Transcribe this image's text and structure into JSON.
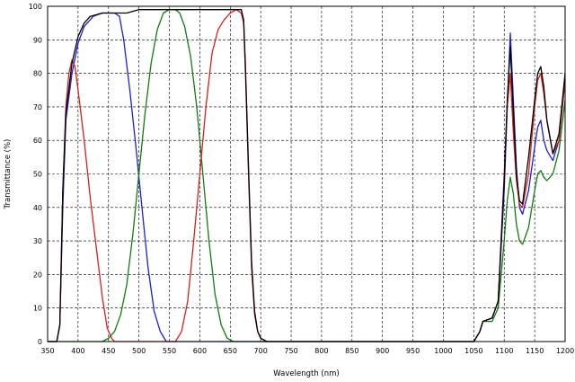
{
  "chart_data": {
    "type": "line",
    "title": "",
    "xlabel": "Wavelength (nm)",
    "ylabel": "Transmittance (%)",
    "xlim": [
      350,
      1200
    ],
    "ylim": [
      0,
      100
    ],
    "grid": true,
    "legend": "none",
    "x_ticks": [
      350,
      400,
      450,
      500,
      550,
      600,
      650,
      700,
      750,
      800,
      850,
      900,
      950,
      1000,
      1050,
      1100,
      1150,
      1200
    ],
    "y_ticks": [
      0,
      10,
      20,
      30,
      40,
      50,
      60,
      70,
      80,
      90,
      100
    ],
    "series": [
      {
        "color": "#1f1fd0",
        "points": [
          [
            350,
            0
          ],
          [
            365,
            0
          ],
          [
            370,
            5
          ],
          [
            375,
            40
          ],
          [
            380,
            66
          ],
          [
            390,
            80
          ],
          [
            400,
            89
          ],
          [
            410,
            94
          ],
          [
            425,
            97
          ],
          [
            440,
            98
          ],
          [
            460,
            98
          ],
          [
            468,
            97
          ],
          [
            475,
            90
          ],
          [
            485,
            75
          ],
          [
            495,
            58
          ],
          [
            505,
            40
          ],
          [
            515,
            22
          ],
          [
            525,
            9
          ],
          [
            535,
            3
          ],
          [
            545,
            0
          ],
          [
            560,
            0
          ],
          [
            1050,
            0
          ],
          [
            1060,
            3
          ],
          [
            1065,
            6
          ],
          [
            1080,
            7
          ],
          [
            1090,
            12
          ],
          [
            1100,
            45
          ],
          [
            1105,
            70
          ],
          [
            1110,
            92
          ],
          [
            1115,
            72
          ],
          [
            1120,
            52
          ],
          [
            1125,
            40
          ],
          [
            1130,
            38
          ],
          [
            1140,
            45
          ],
          [
            1150,
            58
          ],
          [
            1155,
            64
          ],
          [
            1160,
            66
          ],
          [
            1165,
            60
          ],
          [
            1170,
            57
          ],
          [
            1180,
            54
          ],
          [
            1190,
            60
          ],
          [
            1200,
            78
          ]
        ]
      },
      {
        "color": "#107c10",
        "points": [
          [
            350,
            0
          ],
          [
            440,
            0
          ],
          [
            450,
            1
          ],
          [
            460,
            3
          ],
          [
            470,
            8
          ],
          [
            480,
            17
          ],
          [
            490,
            32
          ],
          [
            500,
            50
          ],
          [
            510,
            68
          ],
          [
            520,
            83
          ],
          [
            530,
            93
          ],
          [
            540,
            98
          ],
          [
            550,
            99
          ],
          [
            560,
            99
          ],
          [
            567,
            98
          ],
          [
            575,
            94
          ],
          [
            585,
            85
          ],
          [
            595,
            70
          ],
          [
            605,
            50
          ],
          [
            615,
            30
          ],
          [
            625,
            14
          ],
          [
            635,
            5
          ],
          [
            645,
            1
          ],
          [
            655,
            0
          ],
          [
            1050,
            0
          ],
          [
            1060,
            3
          ],
          [
            1065,
            6
          ],
          [
            1080,
            6
          ],
          [
            1090,
            10
          ],
          [
            1100,
            30
          ],
          [
            1105,
            42
          ],
          [
            1110,
            49
          ],
          [
            1115,
            44
          ],
          [
            1120,
            35
          ],
          [
            1125,
            30
          ],
          [
            1130,
            29
          ],
          [
            1140,
            34
          ],
          [
            1150,
            45
          ],
          [
            1155,
            50
          ],
          [
            1160,
            51
          ],
          [
            1165,
            49
          ],
          [
            1170,
            48
          ],
          [
            1180,
            50
          ],
          [
            1190,
            57
          ],
          [
            1200,
            72
          ]
        ]
      },
      {
        "color": "#d42020",
        "points": [
          [
            350,
            0
          ],
          [
            365,
            0
          ],
          [
            370,
            5
          ],
          [
            375,
            45
          ],
          [
            380,
            70
          ],
          [
            385,
            80
          ],
          [
            390,
            84
          ],
          [
            395,
            82
          ],
          [
            400,
            75
          ],
          [
            410,
            60
          ],
          [
            420,
            43
          ],
          [
            430,
            28
          ],
          [
            440,
            13
          ],
          [
            448,
            4
          ],
          [
            455,
            1
          ],
          [
            460,
            0
          ],
          [
            560,
            0
          ],
          [
            570,
            3
          ],
          [
            580,
            12
          ],
          [
            590,
            30
          ],
          [
            600,
            50
          ],
          [
            610,
            70
          ],
          [
            620,
            86
          ],
          [
            630,
            93
          ],
          [
            640,
            96
          ],
          [
            650,
            98
          ],
          [
            660,
            99
          ],
          [
            668,
            98
          ],
          [
            672,
            95
          ],
          [
            675,
            80
          ],
          [
            680,
            50
          ],
          [
            685,
            22
          ],
          [
            690,
            8
          ],
          [
            695,
            3
          ],
          [
            700,
            1
          ],
          [
            710,
            0
          ],
          [
            1050,
            0
          ],
          [
            1060,
            3
          ],
          [
            1065,
            6
          ],
          [
            1080,
            7
          ],
          [
            1090,
            12
          ],
          [
            1100,
            50
          ],
          [
            1105,
            70
          ],
          [
            1110,
            80
          ],
          [
            1115,
            62
          ],
          [
            1120,
            48
          ],
          [
            1125,
            41
          ],
          [
            1130,
            40
          ],
          [
            1140,
            50
          ],
          [
            1150,
            70
          ],
          [
            1155,
            78
          ],
          [
            1160,
            80
          ],
          [
            1165,
            74
          ],
          [
            1170,
            66
          ],
          [
            1180,
            56
          ],
          [
            1190,
            60
          ],
          [
            1200,
            78
          ]
        ]
      },
      {
        "color": "#000000",
        "points": [
          [
            350,
            0
          ],
          [
            365,
            0
          ],
          [
            370,
            5
          ],
          [
            375,
            45
          ],
          [
            380,
            68
          ],
          [
            390,
            83
          ],
          [
            400,
            91
          ],
          [
            410,
            95
          ],
          [
            420,
            97
          ],
          [
            440,
            98
          ],
          [
            460,
            98
          ],
          [
            480,
            98
          ],
          [
            500,
            99
          ],
          [
            550,
            99
          ],
          [
            600,
            99
          ],
          [
            650,
            99
          ],
          [
            668,
            99
          ],
          [
            672,
            96
          ],
          [
            675,
            82
          ],
          [
            680,
            52
          ],
          [
            685,
            24
          ],
          [
            690,
            9
          ],
          [
            695,
            3
          ],
          [
            700,
            1
          ],
          [
            710,
            0
          ],
          [
            1050,
            0
          ],
          [
            1060,
            3
          ],
          [
            1065,
            6
          ],
          [
            1080,
            7
          ],
          [
            1090,
            12
          ],
          [
            1100,
            48
          ],
          [
            1105,
            72
          ],
          [
            1110,
            88
          ],
          [
            1115,
            68
          ],
          [
            1120,
            50
          ],
          [
            1125,
            42
          ],
          [
            1130,
            41
          ],
          [
            1140,
            55
          ],
          [
            1150,
            72
          ],
          [
            1155,
            80
          ],
          [
            1160,
            82
          ],
          [
            1165,
            76
          ],
          [
            1170,
            66
          ],
          [
            1180,
            56
          ],
          [
            1190,
            62
          ],
          [
            1200,
            80
          ]
        ]
      }
    ]
  }
}
